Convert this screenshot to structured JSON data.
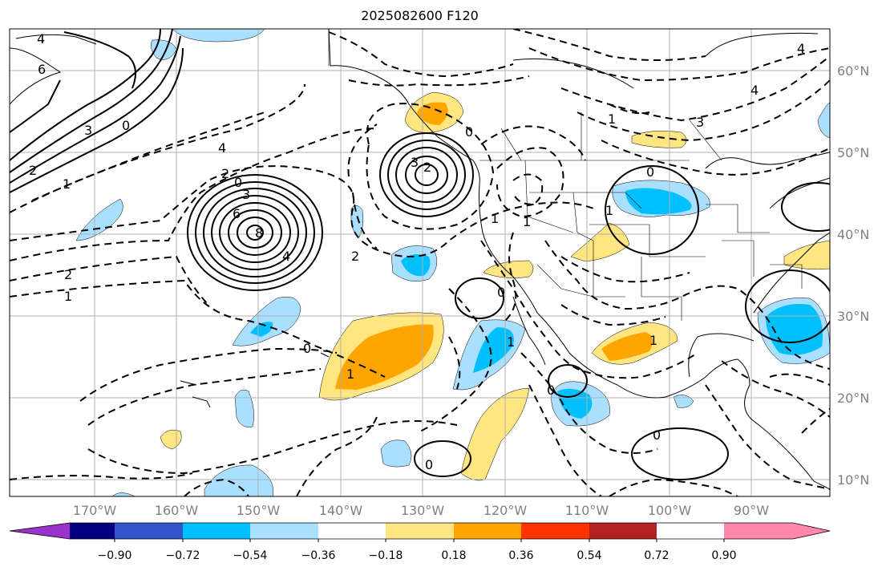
{
  "title": "2025082600 F120",
  "latitude_labels": [
    "60°N",
    "50°N",
    "40°N",
    "30°N",
    "20°N",
    "10°N"
  ],
  "longitude_labels": [
    "170°W",
    "160°W",
    "150°W",
    "140°W",
    "130°W",
    "120°W",
    "110°W",
    "100°W",
    "90°W"
  ],
  "colorbar": {
    "ticks": [
      "−0.90",
      "−0.72",
      "−0.54",
      "−0.36",
      "−0.18",
      "0.18",
      "0.36",
      "0.54",
      "0.72",
      "0.90"
    ],
    "colors": [
      "#9933cc",
      "#000080",
      "#3355cc",
      "#00bfff",
      "#aadfff",
      "#ffffff",
      "#ffe680",
      "#ffa500",
      "#ff3300",
      "#b22222",
      "#ff88aa"
    ]
  },
  "contour_labels": [
    "4",
    "6",
    "3",
    "0",
    "2",
    "4",
    "1",
    "2",
    "0",
    "3",
    "6",
    "8",
    "4",
    "2",
    "2",
    "1",
    "0",
    "1",
    "3",
    "2",
    "0",
    "1",
    "0",
    "1",
    "0",
    "1",
    "0",
    "0",
    "1",
    "4",
    "3",
    "1",
    "0",
    "1",
    "4"
  ],
  "shading_palette": {
    "light_blue": "#aadfff",
    "deep_blue": "#00bfff",
    "light_yellow": "#ffe680",
    "orange": "#ffa500"
  }
}
